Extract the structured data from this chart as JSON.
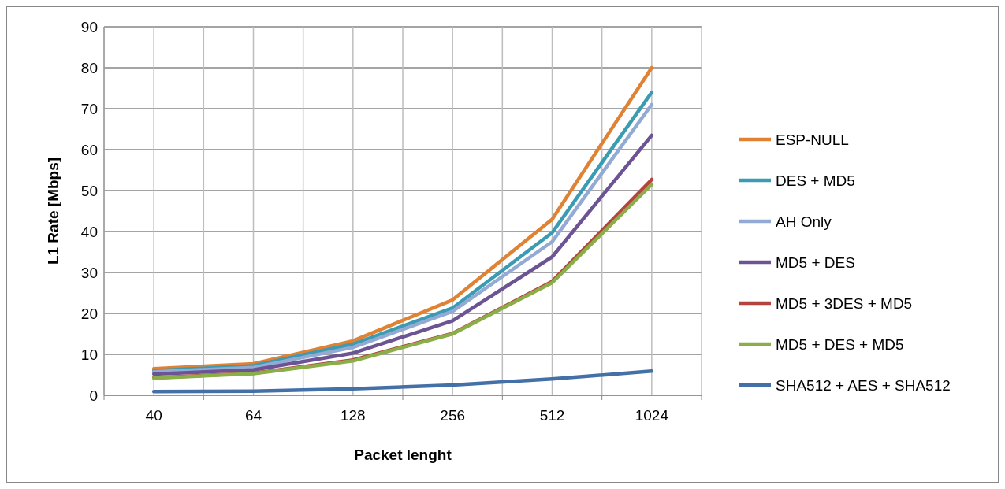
{
  "chart_data": {
    "type": "line",
    "xlabel": "Packet lenght",
    "ylabel": "L1 Rate [Mbps]",
    "categories": [
      "40",
      "64",
      "128",
      "256",
      "512",
      "1024"
    ],
    "ylim": [
      0,
      90
    ],
    "yticks": [
      0,
      10,
      20,
      30,
      40,
      50,
      60,
      70,
      80,
      90
    ],
    "grid": true,
    "legend": "right",
    "series": [
      {
        "name": "ESP-NULL",
        "color": "#e08234",
        "values": [
          6.5,
          7.7,
          13.3,
          23.3,
          43,
          80
        ]
      },
      {
        "name": "DES + MD5",
        "color": "#3b9bb2",
        "values": [
          6,
          7.2,
          12.5,
          21.3,
          39.7,
          74
        ]
      },
      {
        "name": "AH Only",
        "color": "#92aad4",
        "values": [
          5.7,
          6.8,
          11.7,
          20.5,
          37.5,
          71
        ]
      },
      {
        "name": "MD5 + DES",
        "color": "#6c5393",
        "values": [
          5.2,
          6.2,
          10.3,
          18.2,
          33.8,
          63.5
        ]
      },
      {
        "name": "MD5 + 3DES + MD5",
        "color": "#b5443d",
        "values": [
          4.3,
          5.4,
          8.6,
          15.1,
          27.8,
          52.7
        ]
      },
      {
        "name": "MD5 + DES + MD5",
        "color": "#8aae48",
        "values": [
          4.2,
          5.3,
          8.4,
          15,
          27.5,
          51.5
        ]
      },
      {
        "name": "SHA512 + AES + SHA512",
        "color": "#4470a8",
        "values": [
          0.9,
          1,
          1.6,
          2.5,
          4,
          5.9
        ]
      }
    ]
  }
}
